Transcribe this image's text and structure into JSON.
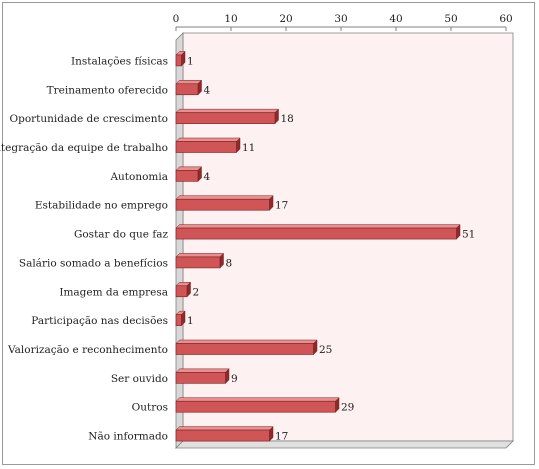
{
  "chart_data": {
    "type": "bar",
    "orientation": "horizontal",
    "style": "3d",
    "categories": [
      "Instalações físicas",
      "Treinamento oferecido",
      "Oportunidade de crescimento",
      "Integração da equipe de trabalho",
      "Autonomia",
      "Estabilidade no emprego",
      "Gostar do que faz",
      "Salário somado a benefícios",
      "Imagem da empresa",
      "Participação nas decisões",
      "Valorização e reconhecimento",
      "Ser ouvido",
      "Outros",
      "Não informado"
    ],
    "values": [
      1,
      4,
      18,
      11,
      4,
      17,
      51,
      8,
      2,
      1,
      25,
      9,
      29,
      17
    ],
    "data_labels": [
      "1",
      "4",
      "18",
      "11",
      "4",
      "17",
      "51",
      "8",
      "2",
      "1",
      "25",
      "9",
      "29",
      "17"
    ],
    "xlim": [
      0,
      60
    ],
    "ticks": [
      0,
      10,
      20,
      30,
      40,
      50,
      60
    ],
    "tick_labels": [
      "0",
      "10",
      "20",
      "30",
      "40",
      "50",
      "60"
    ],
    "x_axis_position": "top",
    "grid": false,
    "legend": "none",
    "colors": {
      "bar_face": "#cf5556",
      "bar_top": "#e89090",
      "bar_side": "#8e2a2b",
      "bar_outline": "#7a1f20",
      "plot_back_wall": "#fdf1f1",
      "plot_floor": "#e0e0e0",
      "axis_line": "#808080"
    }
  }
}
